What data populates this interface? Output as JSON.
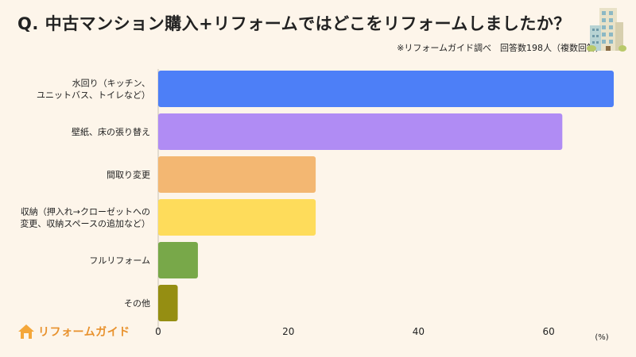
{
  "title": "Q.  中古マンション購入+リフォームではどこをリフォームしましたか？",
  "source": "※リフォームガイド調べ　回答数198人（複数回答）",
  "logo_text": "リフォームガイド",
  "chart_data": {
    "type": "bar",
    "orientation": "horizontal",
    "categories": [
      [
        "水回り（キッチン、",
        "ユニットバス、トイレなど）"
      ],
      [
        "壁紙、床の張り替え"
      ],
      [
        "間取り変更"
      ],
      [
        "収納（押入れ→クローゼットへの",
        "変更、収納スペースの追加など）"
      ],
      [
        "フルリフォーム"
      ],
      [
        "その他"
      ]
    ],
    "values": [
      70,
      62.1,
      24.2,
      24.2,
      6.1,
      3
    ],
    "colors": [
      "#4d7ff7",
      "#b08cf4",
      "#f3b772",
      "#fedc5b",
      "#78a849",
      "#958e12"
    ],
    "xlim": [
      0,
      70
    ],
    "xticks": [
      0,
      20,
      40,
      60
    ],
    "xlabel": "(%)",
    "ylabel": ""
  }
}
